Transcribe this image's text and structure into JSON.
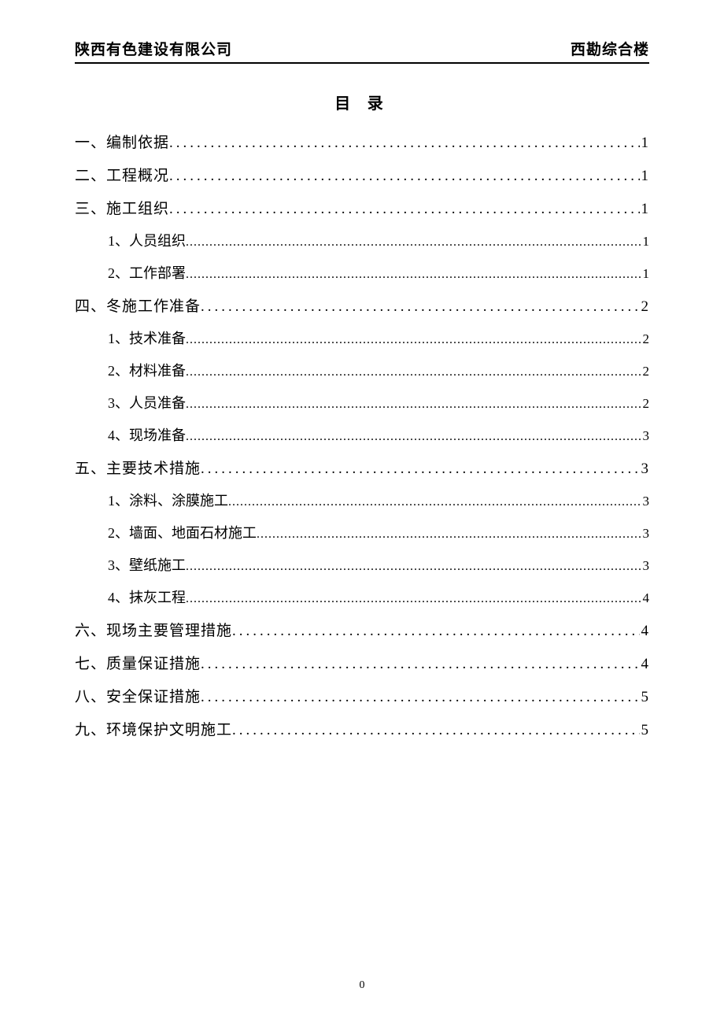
{
  "header": {
    "left": "陕西有色建设有限公司",
    "right": "西勘综合楼"
  },
  "toc_title": "目 录",
  "toc": [
    {
      "level": 1,
      "label": "一、编制依据",
      "page": "1"
    },
    {
      "level": 1,
      "label": "二、工程概况",
      "page": "1"
    },
    {
      "level": 1,
      "label": "三、施工组织",
      "page": "1"
    },
    {
      "level": 2,
      "label": "1、人员组织",
      "page": "1"
    },
    {
      "level": 2,
      "label": "2、工作部署",
      "page": "1"
    },
    {
      "level": 1,
      "label": "四、冬施工作准备",
      "page": "2"
    },
    {
      "level": 2,
      "label": "1、技术准备",
      "page": "2"
    },
    {
      "level": 2,
      "label": "2、材料准备",
      "page": "2"
    },
    {
      "level": 2,
      "label": "3、人员准备",
      "page": "2"
    },
    {
      "level": 2,
      "label": "4、现场准备",
      "page": "3"
    },
    {
      "level": 1,
      "label": "五、主要技术措施",
      "page": "3"
    },
    {
      "level": 2,
      "label": "1、涂料、涂膜施工",
      "page": "3"
    },
    {
      "level": 2,
      "label": "2、墙面、地面石材施工",
      "page": "3"
    },
    {
      "level": 2,
      "label": "3、壁纸施工",
      "page": "3"
    },
    {
      "level": 2,
      "label": "4、抹灰工程",
      "page": "4"
    },
    {
      "level": 1,
      "label": "六、现场主要管理措施",
      "page": "4"
    },
    {
      "level": 1,
      "label": "七、质量保证措施",
      "page": "4"
    },
    {
      "level": 1,
      "label": "八、安全保证措施",
      "page": "5"
    },
    {
      "level": 1,
      "label": "九、环境保护文明施工",
      "page": "5"
    }
  ],
  "page_number": "0"
}
